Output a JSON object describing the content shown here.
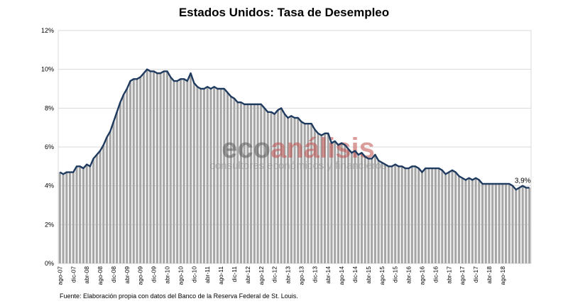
{
  "chart_data": {
    "type": "bar",
    "title": "Estados Unidos: Tasa de Desempleo",
    "xlabel": "",
    "ylabel": "",
    "ylim": [
      0,
      12
    ],
    "y_ticks": [
      "0%",
      "2%",
      "4%",
      "6%",
      "8%",
      "10%",
      "12%"
    ],
    "grid": true,
    "x_tick_labels": [
      "ago-07",
      "dic-07",
      "abr-08",
      "ago-08",
      "dic-08",
      "abr-09",
      "ago-09",
      "dic-09",
      "abr-10",
      "ago-10",
      "dic-10",
      "abr-11",
      "ago-11",
      "dic-11",
      "abr-12",
      "ago-12",
      "dic-12",
      "abr-13",
      "ago-13",
      "dic-13",
      "abr-14",
      "ago-14",
      "dic-14",
      "abr-15",
      "ago-15",
      "dic-15",
      "abr-16",
      "ago-16",
      "dic-16",
      "abr-17",
      "ago-17",
      "dic-17",
      "abr-18",
      "ago-18"
    ],
    "x_start": "ago-07",
    "x_end": "ago-18",
    "values": [
      4.7,
      4.6,
      4.7,
      4.7,
      4.7,
      5.0,
      5.0,
      4.9,
      5.1,
      5.0,
      5.4,
      5.6,
      5.8,
      6.1,
      6.5,
      6.8,
      7.3,
      7.8,
      8.3,
      8.7,
      9.0,
      9.4,
      9.5,
      9.5,
      9.6,
      9.8,
      10.0,
      9.9,
      9.9,
      9.8,
      9.8,
      9.9,
      9.9,
      9.6,
      9.4,
      9.4,
      9.5,
      9.5,
      9.4,
      9.8,
      9.3,
      9.1,
      9.0,
      9.0,
      9.1,
      9.0,
      9.1,
      9.0,
      9.0,
      9.0,
      8.8,
      8.6,
      8.5,
      8.3,
      8.3,
      8.2,
      8.2,
      8.2,
      8.2,
      8.2,
      8.2,
      8.0,
      7.8,
      7.8,
      7.7,
      7.9,
      8.0,
      7.7,
      7.5,
      7.6,
      7.5,
      7.5,
      7.3,
      7.2,
      7.2,
      7.2,
      6.9,
      6.7,
      6.6,
      6.7,
      6.7,
      6.2,
      6.3,
      6.1,
      6.2,
      6.1,
      5.9,
      5.7,
      5.8,
      5.6,
      5.7,
      5.5,
      5.4,
      5.4,
      5.6,
      5.3,
      5.2,
      5.1,
      5.0,
      5.0,
      5.1,
      5.0,
      5.0,
      4.9,
      4.9,
      5.0,
      5.0,
      4.9,
      4.7,
      4.9,
      4.9,
      4.9,
      4.9,
      4.9,
      4.8,
      4.6,
      4.7,
      4.8,
      4.7,
      4.5,
      4.4,
      4.3,
      4.4,
      4.3,
      4.4,
      4.3,
      4.1,
      4.1,
      4.1,
      4.1,
      4.1,
      4.1,
      4.1,
      4.1,
      4.1,
      4.0,
      3.8,
      3.9,
      4.0,
      3.9,
      3.9
    ],
    "bar_color": "#a6a6a6",
    "line_color": "#1f3a5f",
    "annotations": [
      {
        "text": "3,9%"
      }
    ]
  },
  "source_note": "Fuente: Elaboración propia con datos del Banco de la Reserva Federal de St. Louis.",
  "watermark": {
    "part1": "eco",
    "part2": "análisis",
    "subtitle": "consultores económicos y financieros",
    "color1": "#5a5a5a",
    "color2": "#c0504d"
  }
}
